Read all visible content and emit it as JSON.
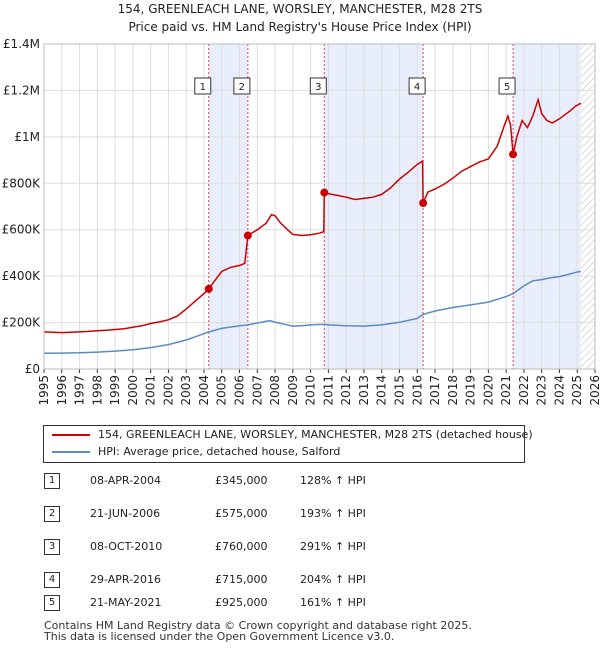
{
  "chart_data": {
    "type": "line",
    "title": "154, GREENLEACH LANE, WORSLEY, MANCHESTER, M28 2TS",
    "subtitle": "Price paid vs. HM Land Registry's House Price Index (HPI)",
    "xlim": [
      1995,
      2026
    ],
    "ylim": [
      0,
      1400000
    ],
    "x_ticks": [
      "1995",
      "1996",
      "1997",
      "1998",
      "1999",
      "2000",
      "2001",
      "2002",
      "2003",
      "2004",
      "2005",
      "2006",
      "2007",
      "2008",
      "2009",
      "2010",
      "2011",
      "2012",
      "2013",
      "2014",
      "2015",
      "2016",
      "2017",
      "2018",
      "2019",
      "2020",
      "2021",
      "2022",
      "2023",
      "2024",
      "2025",
      "2026"
    ],
    "y_ticks": [
      {
        "value": 0,
        "label": "£0"
      },
      {
        "value": 200000,
        "label": "£200K"
      },
      {
        "value": 400000,
        "label": "£400K"
      },
      {
        "value": 600000,
        "label": "£600K"
      },
      {
        "value": 800000,
        "label": "£800K"
      },
      {
        "value": 1000000,
        "label": "£1M"
      },
      {
        "value": 1200000,
        "label": "£1.2M"
      },
      {
        "value": 1400000,
        "label": "£1.4M"
      }
    ],
    "grid": true,
    "shaded_ranges": [
      [
        2004.27,
        2006.47
      ],
      [
        2010.77,
        2016.33
      ],
      [
        2021.39,
        2025.2
      ]
    ],
    "future_hatch_start": 2025.2,
    "sale_marker_x": [
      2004.27,
      2006.47,
      2010.77,
      2016.33,
      2021.39
    ],
    "series": [
      {
        "name": "154, GREENLEACH LANE, WORSLEY, MANCHESTER, M28 2TS (detached house)",
        "color": "#cc0000",
        "points": [
          [
            1995.0,
            160000
          ],
          [
            1995.5,
            158000
          ],
          [
            1996.0,
            157000
          ],
          [
            1996.5,
            158000
          ],
          [
            1997.0,
            160000
          ],
          [
            1997.5,
            162000
          ],
          [
            1998.0,
            165000
          ],
          [
            1998.5,
            167000
          ],
          [
            1999.0,
            170000
          ],
          [
            1999.5,
            173000
          ],
          [
            2000.0,
            180000
          ],
          [
            2000.5,
            186000
          ],
          [
            2001.0,
            196000
          ],
          [
            2001.5,
            203000
          ],
          [
            2002.0,
            212000
          ],
          [
            2002.5,
            228000
          ],
          [
            2003.0,
            258000
          ],
          [
            2003.5,
            292000
          ],
          [
            2004.0,
            325000
          ],
          [
            2004.27,
            345000
          ],
          [
            2004.6,
            380000
          ],
          [
            2005.0,
            420000
          ],
          [
            2005.5,
            438000
          ],
          [
            2006.0,
            446000
          ],
          [
            2006.3,
            455000
          ],
          [
            2006.47,
            575000
          ],
          [
            2007.0,
            600000
          ],
          [
            2007.5,
            628000
          ],
          [
            2007.8,
            665000
          ],
          [
            2008.0,
            660000
          ],
          [
            2008.3,
            630000
          ],
          [
            2008.7,
            600000
          ],
          [
            2009.0,
            580000
          ],
          [
            2009.5,
            575000
          ],
          [
            2010.0,
            578000
          ],
          [
            2010.5,
            585000
          ],
          [
            2010.74,
            592000
          ],
          [
            2010.77,
            760000
          ],
          [
            2011.0,
            755000
          ],
          [
            2011.5,
            748000
          ],
          [
            2012.0,
            740000
          ],
          [
            2012.5,
            730000
          ],
          [
            2013.0,
            735000
          ],
          [
            2013.5,
            740000
          ],
          [
            2014.0,
            752000
          ],
          [
            2014.5,
            780000
          ],
          [
            2015.0,
            818000
          ],
          [
            2015.5,
            848000
          ],
          [
            2016.0,
            882000
          ],
          [
            2016.3,
            895000
          ],
          [
            2016.33,
            715000
          ],
          [
            2016.6,
            762000
          ],
          [
            2017.0,
            775000
          ],
          [
            2017.5,
            795000
          ],
          [
            2018.0,
            822000
          ],
          [
            2018.5,
            852000
          ],
          [
            2019.0,
            872000
          ],
          [
            2019.5,
            892000
          ],
          [
            2020.0,
            905000
          ],
          [
            2020.5,
            960000
          ],
          [
            2020.9,
            1050000
          ],
          [
            2021.1,
            1090000
          ],
          [
            2021.25,
            1050000
          ],
          [
            2021.39,
            925000
          ],
          [
            2021.6,
            1000000
          ],
          [
            2021.9,
            1070000
          ],
          [
            2022.2,
            1040000
          ],
          [
            2022.5,
            1090000
          ],
          [
            2022.8,
            1160000
          ],
          [
            2023.0,
            1100000
          ],
          [
            2023.3,
            1070000
          ],
          [
            2023.6,
            1060000
          ],
          [
            2024.0,
            1078000
          ],
          [
            2024.3,
            1095000
          ],
          [
            2024.6,
            1112000
          ],
          [
            2024.9,
            1132000
          ],
          [
            2025.2,
            1145000
          ]
        ]
      },
      {
        "name": "HPI: Average price, detached house, Salford",
        "color": "#5b8ac4",
        "points": [
          [
            1995.0,
            68000
          ],
          [
            1996.0,
            68500
          ],
          [
            1997.0,
            70000
          ],
          [
            1998.0,
            73000
          ],
          [
            1999.0,
            77000
          ],
          [
            2000.0,
            83000
          ],
          [
            2001.0,
            92000
          ],
          [
            2002.0,
            105000
          ],
          [
            2003.0,
            125000
          ],
          [
            2004.0,
            152000
          ],
          [
            2004.27,
            160000
          ],
          [
            2005.0,
            175000
          ],
          [
            2006.0,
            186000
          ],
          [
            2006.47,
            190000
          ],
          [
            2007.0,
            198000
          ],
          [
            2007.7,
            208000
          ],
          [
            2008.0,
            202000
          ],
          [
            2008.5,
            193000
          ],
          [
            2009.0,
            185000
          ],
          [
            2009.5,
            186000
          ],
          [
            2010.0,
            190000
          ],
          [
            2010.77,
            193000
          ],
          [
            2011.0,
            190000
          ],
          [
            2012.0,
            186000
          ],
          [
            2013.0,
            185000
          ],
          [
            2014.0,
            190000
          ],
          [
            2015.0,
            201000
          ],
          [
            2016.0,
            218000
          ],
          [
            2016.33,
            235000
          ],
          [
            2017.0,
            250000
          ],
          [
            2018.0,
            265000
          ],
          [
            2019.0,
            276000
          ],
          [
            2020.0,
            288000
          ],
          [
            2021.0,
            312000
          ],
          [
            2021.39,
            325000
          ],
          [
            2022.0,
            358000
          ],
          [
            2022.5,
            380000
          ],
          [
            2023.0,
            385000
          ],
          [
            2023.5,
            393000
          ],
          [
            2024.0,
            398000
          ],
          [
            2024.5,
            407000
          ],
          [
            2025.0,
            418000
          ],
          [
            2025.2,
            420000
          ]
        ]
      }
    ]
  },
  "markers": [
    {
      "id": "1",
      "x": 2004.27,
      "y": 345000
    },
    {
      "id": "2",
      "x": 2006.47,
      "y": 575000
    },
    {
      "id": "3",
      "x": 2010.77,
      "y": 760000
    },
    {
      "id": "4",
      "x": 2016.33,
      "y": 715000
    },
    {
      "id": "5",
      "x": 2021.39,
      "y": 925000
    }
  ],
  "legend": {
    "property": "154, GREENLEACH LANE, WORSLEY, MANCHESTER, M28 2TS (detached house)",
    "hpi": "HPI: Average price, detached house, Salford"
  },
  "sales": [
    {
      "num": "1",
      "date": "08-APR-2004",
      "price": "£345,000",
      "hpi": "128% ↑ HPI"
    },
    {
      "num": "2",
      "date": "21-JUN-2006",
      "price": "£575,000",
      "hpi": "193% ↑ HPI"
    },
    {
      "num": "3",
      "date": "08-OCT-2010",
      "price": "£760,000",
      "hpi": "291% ↑ HPI"
    },
    {
      "num": "4",
      "date": "29-APR-2016",
      "price": "£715,000",
      "hpi": "204% ↑ HPI"
    },
    {
      "num": "5",
      "date": "21-MAY-2021",
      "price": "£925,000",
      "hpi": "161% ↑ HPI"
    }
  ],
  "footer": {
    "line1": "Contains HM Land Registry data © Crown copyright and database right 2025.",
    "line2": "This data is licensed under the Open Government Licence v3.0."
  },
  "colors": {
    "property": "#cc0000",
    "hpi": "#5b8ac4",
    "shade": "#e8eefb",
    "grid": "#dddddd"
  }
}
